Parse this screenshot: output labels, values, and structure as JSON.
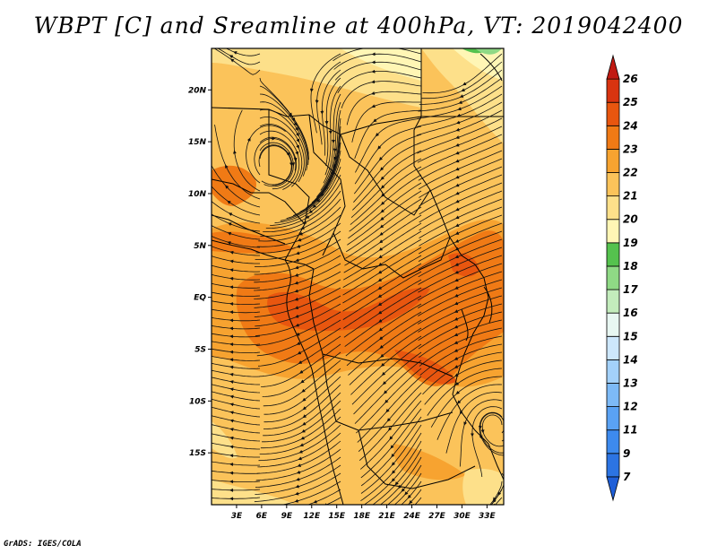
{
  "title": "WBPT [C] and Sreamline at 400hPa, VT: 2019042400",
  "footer": "GrADS: IGES/COLA",
  "chart_data": {
    "type": "contour-map",
    "variable": "Wet-bulb potential temperature (WBPT) with streamlines",
    "units": "C",
    "level": "400hPa",
    "valid_time": "2019042400",
    "lon_range": [
      0,
      35
    ],
    "lat_range": [
      -20,
      24
    ],
    "lon_ticks": [
      {
        "value": 3,
        "label": "3E"
      },
      {
        "value": 6,
        "label": "6E"
      },
      {
        "value": 9,
        "label": "9E"
      },
      {
        "value": 12,
        "label": "12E"
      },
      {
        "value": 15,
        "label": "15E"
      },
      {
        "value": 18,
        "label": "18E"
      },
      {
        "value": 21,
        "label": "21E"
      },
      {
        "value": 24,
        "label": "24E"
      },
      {
        "value": 27,
        "label": "27E"
      },
      {
        "value": 30,
        "label": "30E"
      },
      {
        "value": 33,
        "label": "33E"
      }
    ],
    "lat_ticks": [
      {
        "value": 20,
        "label": "20N"
      },
      {
        "value": 15,
        "label": "15N"
      },
      {
        "value": 10,
        "label": "10N"
      },
      {
        "value": 5,
        "label": "5N"
      },
      {
        "value": 0,
        "label": "EQ"
      },
      {
        "value": -5,
        "label": "5S"
      },
      {
        "value": -10,
        "label": "10S"
      },
      {
        "value": -15,
        "label": "15S"
      }
    ],
    "colorbar": {
      "levels": [
        "7",
        "9",
        "11",
        "12",
        "13",
        "14",
        "15",
        "16",
        "17",
        "18",
        "19",
        "20",
        "21",
        "22",
        "23",
        "24",
        "25",
        "26"
      ],
      "colors": [
        "#1f5fd8",
        "#2c74e3",
        "#3d8aee",
        "#5aa2f4",
        "#7dbaf7",
        "#a3d1fa",
        "#cde7fc",
        "#e8f7f2",
        "#c3ecbc",
        "#8fd985",
        "#55c24e",
        "#fff6b5",
        "#fde08a",
        "#fbc35a",
        "#f7a330",
        "#f07a15",
        "#e8560f",
        "#d83410",
        "#c11a12"
      ],
      "extend": "both"
    },
    "field_description": "Mostly 20-23 C over Africa; maxima (23-24 C) in a band from Congo Basin to East Africa and Gulf of Guinea; 19-20 C in north and south edges; small 17-18 C patch at top-right corner.",
    "streamlines": "Anticyclonic circulation centred near 12N 5E; westerly-easterly flow across the equator; cyclonic eddy near 10S 33E."
  }
}
